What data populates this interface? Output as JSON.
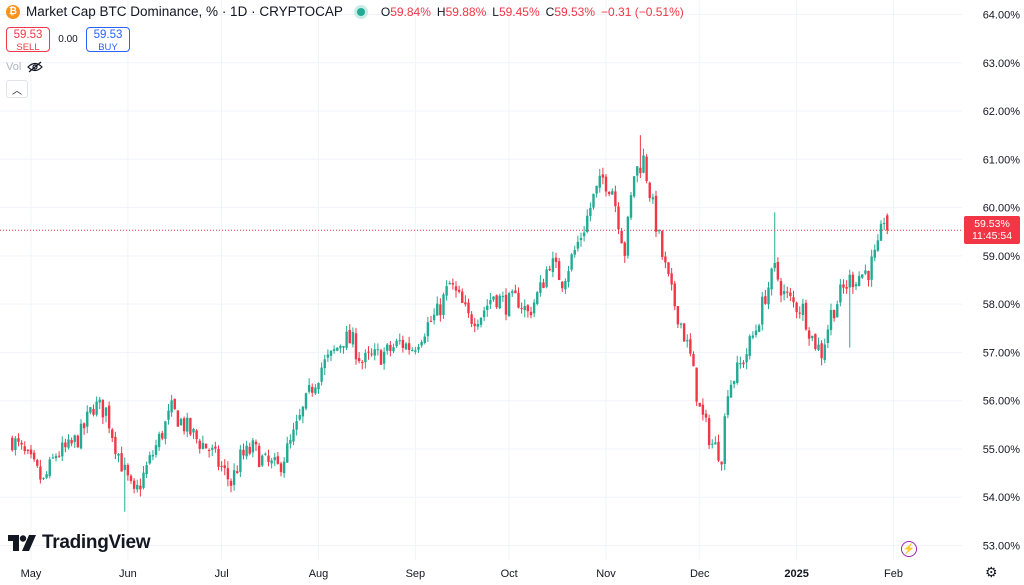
{
  "header": {
    "title": "Market Cap BTC Dominance, % · 1D · CRYPTOCAP",
    "logo_icon": "btc-logo-icon",
    "ohlc": [
      {
        "label": "O",
        "value": "59.84%"
      },
      {
        "label": "H",
        "value": "59.88%"
      },
      {
        "label": "L",
        "value": "59.45%"
      },
      {
        "label": "C",
        "value": "59.53%"
      },
      {
        "label": "",
        "value": "−0.31 (−0.51%)"
      }
    ]
  },
  "trade": {
    "sell_price": "59.53",
    "sell_label": "SELL",
    "spread": "0.00",
    "buy_price": "59.53",
    "buy_label": "BUY"
  },
  "volume": {
    "label": "Vol",
    "icon": "eye-off-icon"
  },
  "branding": {
    "name": "TradingView"
  },
  "last_price": {
    "value": "59.53%",
    "countdown": "11:45:54"
  },
  "colors": {
    "up": "#22ab94",
    "down": "#f23645",
    "grid": "#f0f3fa",
    "text": "#131722"
  },
  "chart_data": {
    "type": "candlestick",
    "y_unit": "%",
    "ylim": [
      52.7,
      64.3
    ],
    "y_ticks": [
      "53.00%",
      "54.00%",
      "55.00%",
      "56.00%",
      "57.00%",
      "58.00%",
      "59.00%",
      "60.00%",
      "61.00%",
      "62.00%",
      "63.00%",
      "64.00%"
    ],
    "x_ticks": [
      "May",
      "Jun",
      "Jul",
      "Aug",
      "Sep",
      "Oct",
      "Nov",
      "Dec",
      "2025",
      "Feb"
    ],
    "x_tick_days": [
      0,
      31,
      61,
      92,
      123,
      153,
      184,
      214,
      245,
      276
    ],
    "grid": true,
    "last_close": 59.53,
    "close_path": [
      [
        -6,
        55.2
      ],
      [
        0,
        54.7
      ],
      [
        4,
        54.3
      ],
      [
        8,
        54.9
      ],
      [
        12,
        55.0
      ],
      [
        16,
        55.3
      ],
      [
        20,
        55.9
      ],
      [
        24,
        55.8
      ],
      [
        27,
        55.1
      ],
      [
        30,
        54.5
      ],
      [
        33,
        54.0
      ],
      [
        37,
        54.6
      ],
      [
        41,
        55.2
      ],
      [
        45,
        55.8
      ],
      [
        49,
        55.5
      ],
      [
        53,
        55.2
      ],
      [
        57,
        55.0
      ],
      [
        61,
        54.6
      ],
      [
        64,
        54.3
      ],
      [
        67,
        54.8
      ],
      [
        71,
        55.0
      ],
      [
        75,
        54.7
      ],
      [
        79,
        54.6
      ],
      [
        83,
        55.1
      ],
      [
        86,
        55.6
      ],
      [
        90,
        56.3
      ],
      [
        93,
        56.7
      ],
      [
        96,
        56.9
      ],
      [
        100,
        57.3
      ],
      [
        103,
        57.2
      ],
      [
        106,
        56.8
      ],
      [
        110,
        56.9
      ],
      [
        114,
        57.0
      ],
      [
        118,
        57.2
      ],
      [
        122,
        57.1
      ],
      [
        126,
        57.5
      ],
      [
        130,
        57.8
      ],
      [
        134,
        58.4
      ],
      [
        137,
        58.1
      ],
      [
        140,
        57.7
      ],
      [
        144,
        57.8
      ],
      [
        148,
        58.2
      ],
      [
        152,
        58.0
      ],
      [
        156,
        58.1
      ],
      [
        159,
        57.8
      ],
      [
        163,
        58.3
      ],
      [
        166,
        58.9
      ],
      [
        170,
        58.5
      ],
      [
        174,
        59.1
      ],
      [
        177,
        59.6
      ],
      [
        180,
        60.2
      ],
      [
        183,
        60.6
      ],
      [
        186,
        60.4
      ],
      [
        190,
        59.1
      ],
      [
        193,
        60.7
      ],
      [
        196,
        61.0
      ],
      [
        199,
        60.0
      ],
      [
        202,
        59.0
      ],
      [
        205,
        58.2
      ],
      [
        208,
        57.6
      ],
      [
        211,
        56.9
      ],
      [
        214,
        55.8
      ],
      [
        218,
        55.1
      ],
      [
        221,
        54.9
      ],
      [
        223,
        56.3
      ],
      [
        226,
        56.6
      ],
      [
        229,
        57.0
      ],
      [
        232,
        57.5
      ],
      [
        235,
        58.2
      ],
      [
        238,
        58.7
      ],
      [
        241,
        58.2
      ],
      [
        244,
        58.0
      ],
      [
        247,
        57.9
      ],
      [
        250,
        57.3
      ],
      [
        253,
        57.0
      ],
      [
        256,
        57.8
      ],
      [
        259,
        58.2
      ],
      [
        262,
        58.5
      ],
      [
        265,
        58.6
      ],
      [
        268,
        58.7
      ],
      [
        271,
        59.1
      ],
      [
        273,
        59.8
      ],
      [
        274,
        59.53
      ]
    ],
    "spikes": [
      {
        "day": 195,
        "high": 61.5
      },
      {
        "day": 221,
        "low": 54.55
      },
      {
        "day": 238,
        "high": 59.9
      },
      {
        "day": 262,
        "low": 57.1
      },
      {
        "day": 30,
        "low": 53.7
      }
    ]
  }
}
